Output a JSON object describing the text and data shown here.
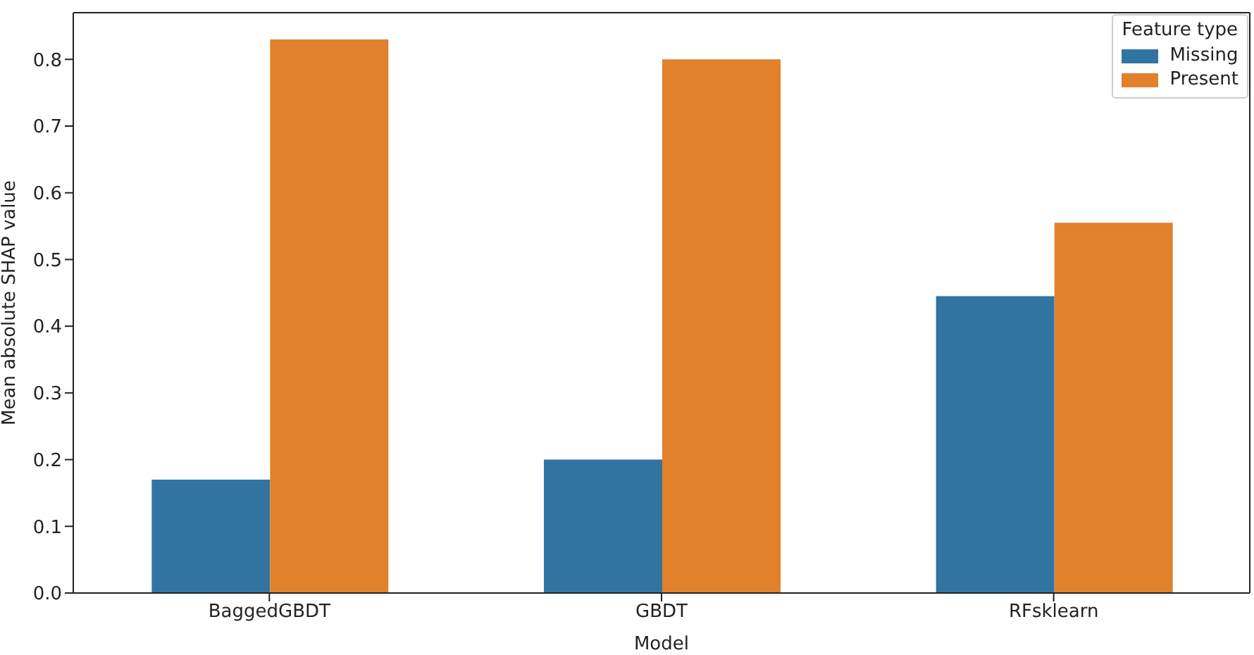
{
  "chart_data": {
    "type": "bar",
    "xlabel": "Model",
    "ylabel": "Mean absolute SHAP value",
    "legend_title": "Feature type",
    "categories": [
      "BaggedGBDT",
      "GBDT",
      "RFsklearn"
    ],
    "series": [
      {
        "name": "Missing",
        "color": "#3274a1",
        "values": [
          0.17,
          0.2,
          0.445
        ]
      },
      {
        "name": "Present",
        "color": "#e1812c",
        "values": [
          0.83,
          0.8,
          0.555
        ]
      }
    ],
    "ylim": [
      0,
      0.87
    ],
    "yticks": [
      {
        "value": 0,
        "label": "0.0"
      },
      {
        "value": 0.1,
        "label": "0.1"
      },
      {
        "value": 0.2,
        "label": "0.2"
      },
      {
        "value": 0.3,
        "label": "0.3"
      },
      {
        "value": 0.4,
        "label": "0.4"
      },
      {
        "value": 0.5,
        "label": "0.5"
      },
      {
        "value": 0.6,
        "label": "0.6"
      },
      {
        "value": 0.7,
        "label": "0.7"
      },
      {
        "value": 0.8,
        "label": "0.8"
      }
    ],
    "grid": false,
    "legend": "top right"
  }
}
